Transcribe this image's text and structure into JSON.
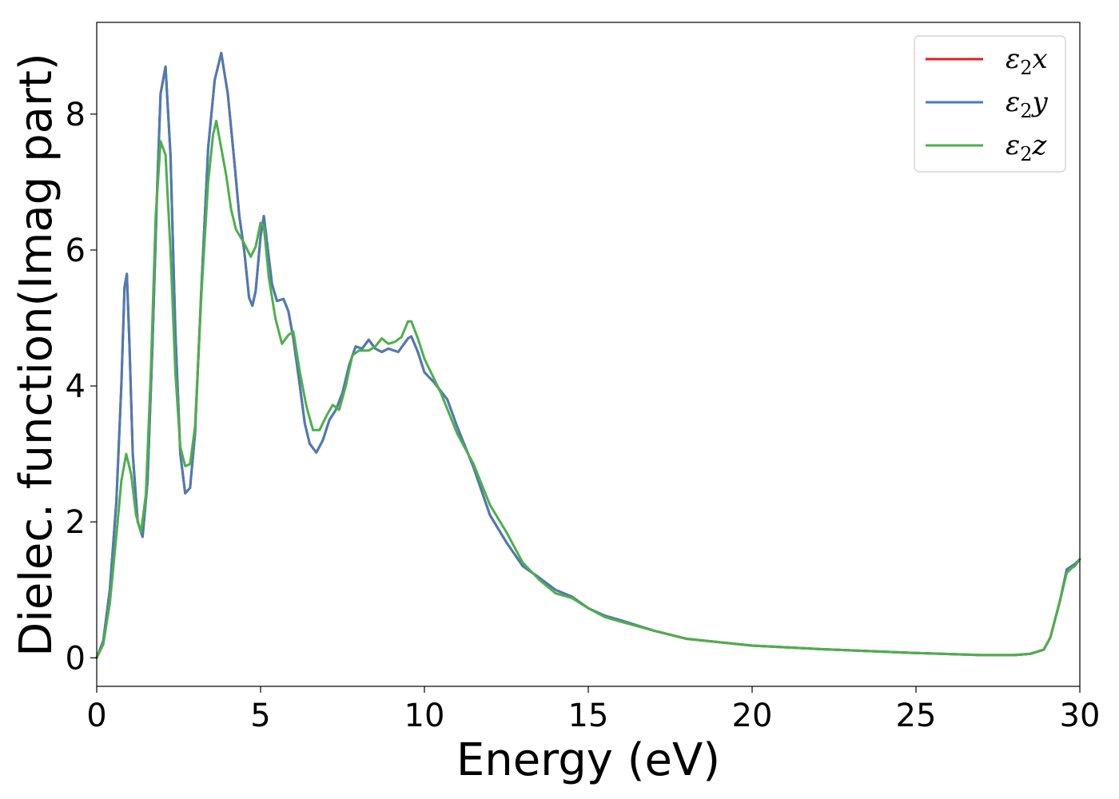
{
  "chart_data": {
    "type": "line",
    "xlabel": "Energy (eV)",
    "ylabel": "Dielec. function(Imag part)",
    "xlim": [
      0,
      30
    ],
    "ylim": [
      -0.42,
      9.35
    ],
    "xticks": [
      0,
      5,
      10,
      15,
      20,
      25,
      30
    ],
    "yticks": [
      0,
      2,
      4,
      6,
      8
    ],
    "grid": false,
    "legend_position": "top-right",
    "series": [
      {
        "name": "ε₂x",
        "legend": {
          "base": "ε",
          "sub": "2",
          "suffix": "x"
        },
        "color": "#e41a1c",
        "points": [
          [
            0,
            0
          ],
          [
            0.2,
            0.25
          ],
          [
            0.4,
            1.0
          ],
          [
            0.6,
            2.3
          ],
          [
            0.75,
            4.0
          ],
          [
            0.85,
            5.45
          ],
          [
            0.92,
            5.65
          ],
          [
            1.0,
            4.6
          ],
          [
            1.1,
            3.0
          ],
          [
            1.25,
            2.0
          ],
          [
            1.4,
            1.78
          ],
          [
            1.55,
            2.6
          ],
          [
            1.7,
            4.6
          ],
          [
            1.85,
            7.0
          ],
          [
            1.95,
            8.3
          ],
          [
            2.1,
            8.7
          ],
          [
            2.25,
            7.4
          ],
          [
            2.4,
            4.8
          ],
          [
            2.55,
            3.0
          ],
          [
            2.7,
            2.42
          ],
          [
            2.85,
            2.5
          ],
          [
            3.0,
            3.3
          ],
          [
            3.2,
            5.5
          ],
          [
            3.4,
            7.5
          ],
          [
            3.6,
            8.5
          ],
          [
            3.8,
            8.9
          ],
          [
            4.0,
            8.3
          ],
          [
            4.2,
            7.3
          ],
          [
            4.35,
            6.5
          ],
          [
            4.5,
            6.0
          ],
          [
            4.65,
            5.3
          ],
          [
            4.75,
            5.18
          ],
          [
            4.85,
            5.4
          ],
          [
            5.0,
            6.2
          ],
          [
            5.1,
            6.5
          ],
          [
            5.2,
            6.1
          ],
          [
            5.35,
            5.5
          ],
          [
            5.5,
            5.25
          ],
          [
            5.7,
            5.28
          ],
          [
            5.85,
            5.1
          ],
          [
            6.0,
            4.7
          ],
          [
            6.2,
            4.0
          ],
          [
            6.35,
            3.45
          ],
          [
            6.5,
            3.15
          ],
          [
            6.7,
            3.02
          ],
          [
            6.9,
            3.2
          ],
          [
            7.1,
            3.5
          ],
          [
            7.3,
            3.65
          ],
          [
            7.5,
            3.9
          ],
          [
            7.7,
            4.3
          ],
          [
            7.9,
            4.58
          ],
          [
            8.1,
            4.55
          ],
          [
            8.3,
            4.68
          ],
          [
            8.5,
            4.55
          ],
          [
            8.7,
            4.5
          ],
          [
            8.9,
            4.55
          ],
          [
            9.2,
            4.5
          ],
          [
            9.5,
            4.7
          ],
          [
            9.6,
            4.73
          ],
          [
            9.8,
            4.5
          ],
          [
            10.0,
            4.2
          ],
          [
            10.3,
            4.05
          ],
          [
            10.7,
            3.8
          ],
          [
            11.0,
            3.4
          ],
          [
            11.5,
            2.8
          ],
          [
            12.0,
            2.1
          ],
          [
            12.5,
            1.7
          ],
          [
            13.0,
            1.35
          ],
          [
            13.5,
            1.18
          ],
          [
            14.0,
            1.0
          ],
          [
            14.5,
            0.9
          ],
          [
            15.0,
            0.73
          ],
          [
            15.5,
            0.62
          ],
          [
            16.0,
            0.55
          ],
          [
            17.0,
            0.4
          ],
          [
            18.0,
            0.28
          ],
          [
            20.0,
            0.18
          ],
          [
            22.0,
            0.13
          ],
          [
            25.0,
            0.07
          ],
          [
            27.0,
            0.04
          ],
          [
            28.0,
            0.04
          ],
          [
            28.5,
            0.06
          ],
          [
            28.9,
            0.12
          ],
          [
            29.1,
            0.3
          ],
          [
            29.4,
            0.85
          ],
          [
            29.6,
            1.3
          ],
          [
            29.75,
            1.35
          ],
          [
            29.85,
            1.38
          ],
          [
            30.0,
            1.45
          ]
        ]
      },
      {
        "name": "ε₂y",
        "legend": {
          "base": "ε",
          "sub": "2",
          "suffix": "y"
        },
        "color": "#4a7bb7",
        "points": [
          [
            0,
            0
          ],
          [
            0.2,
            0.25
          ],
          [
            0.4,
            1.0
          ],
          [
            0.6,
            2.3
          ],
          [
            0.75,
            4.0
          ],
          [
            0.85,
            5.45
          ],
          [
            0.92,
            5.65
          ],
          [
            1.0,
            4.6
          ],
          [
            1.1,
            3.0
          ],
          [
            1.25,
            2.0
          ],
          [
            1.4,
            1.78
          ],
          [
            1.55,
            2.6
          ],
          [
            1.7,
            4.6
          ],
          [
            1.85,
            7.0
          ],
          [
            1.95,
            8.3
          ],
          [
            2.1,
            8.7
          ],
          [
            2.25,
            7.4
          ],
          [
            2.4,
            4.8
          ],
          [
            2.55,
            3.0
          ],
          [
            2.7,
            2.42
          ],
          [
            2.85,
            2.5
          ],
          [
            3.0,
            3.3
          ],
          [
            3.2,
            5.5
          ],
          [
            3.4,
            7.5
          ],
          [
            3.6,
            8.5
          ],
          [
            3.8,
            8.9
          ],
          [
            4.0,
            8.3
          ],
          [
            4.2,
            7.3
          ],
          [
            4.35,
            6.5
          ],
          [
            4.5,
            6.0
          ],
          [
            4.65,
            5.3
          ],
          [
            4.75,
            5.18
          ],
          [
            4.85,
            5.4
          ],
          [
            5.0,
            6.2
          ],
          [
            5.1,
            6.5
          ],
          [
            5.2,
            6.1
          ],
          [
            5.35,
            5.5
          ],
          [
            5.5,
            5.25
          ],
          [
            5.7,
            5.28
          ],
          [
            5.85,
            5.1
          ],
          [
            6.0,
            4.7
          ],
          [
            6.2,
            4.0
          ],
          [
            6.35,
            3.45
          ],
          [
            6.5,
            3.15
          ],
          [
            6.7,
            3.02
          ],
          [
            6.9,
            3.2
          ],
          [
            7.1,
            3.5
          ],
          [
            7.3,
            3.65
          ],
          [
            7.5,
            3.9
          ],
          [
            7.7,
            4.3
          ],
          [
            7.9,
            4.58
          ],
          [
            8.1,
            4.55
          ],
          [
            8.3,
            4.68
          ],
          [
            8.5,
            4.55
          ],
          [
            8.7,
            4.5
          ],
          [
            8.9,
            4.55
          ],
          [
            9.2,
            4.5
          ],
          [
            9.5,
            4.7
          ],
          [
            9.6,
            4.73
          ],
          [
            9.8,
            4.5
          ],
          [
            10.0,
            4.2
          ],
          [
            10.3,
            4.05
          ],
          [
            10.7,
            3.8
          ],
          [
            11.0,
            3.4
          ],
          [
            11.5,
            2.8
          ],
          [
            12.0,
            2.1
          ],
          [
            12.5,
            1.7
          ],
          [
            13.0,
            1.35
          ],
          [
            13.5,
            1.18
          ],
          [
            14.0,
            1.0
          ],
          [
            14.5,
            0.9
          ],
          [
            15.0,
            0.73
          ],
          [
            15.5,
            0.62
          ],
          [
            16.0,
            0.55
          ],
          [
            17.0,
            0.4
          ],
          [
            18.0,
            0.28
          ],
          [
            20.0,
            0.18
          ],
          [
            22.0,
            0.13
          ],
          [
            25.0,
            0.07
          ],
          [
            27.0,
            0.04
          ],
          [
            28.0,
            0.04
          ],
          [
            28.5,
            0.06
          ],
          [
            28.9,
            0.12
          ],
          [
            29.1,
            0.3
          ],
          [
            29.4,
            0.85
          ],
          [
            29.6,
            1.3
          ],
          [
            29.75,
            1.35
          ],
          [
            29.85,
            1.38
          ],
          [
            30.0,
            1.45
          ]
        ]
      },
      {
        "name": "ε₂z",
        "legend": {
          "base": "ε",
          "sub": "2",
          "suffix": "z"
        },
        "color": "#4daf4a",
        "points": [
          [
            0,
            0
          ],
          [
            0.2,
            0.2
          ],
          [
            0.4,
            0.8
          ],
          [
            0.6,
            1.8
          ],
          [
            0.75,
            2.6
          ],
          [
            0.9,
            3.0
          ],
          [
            1.05,
            2.7
          ],
          [
            1.2,
            2.1
          ],
          [
            1.35,
            1.85
          ],
          [
            1.5,
            2.4
          ],
          [
            1.65,
            4.2
          ],
          [
            1.8,
            6.5
          ],
          [
            1.95,
            7.6
          ],
          [
            2.1,
            7.4
          ],
          [
            2.25,
            6.0
          ],
          [
            2.4,
            4.2
          ],
          [
            2.55,
            3.1
          ],
          [
            2.7,
            2.82
          ],
          [
            2.85,
            2.85
          ],
          [
            3.0,
            3.4
          ],
          [
            3.2,
            5.4
          ],
          [
            3.4,
            7.0
          ],
          [
            3.55,
            7.7
          ],
          [
            3.65,
            7.9
          ],
          [
            3.8,
            7.5
          ],
          [
            3.95,
            7.1
          ],
          [
            4.1,
            6.6
          ],
          [
            4.25,
            6.3
          ],
          [
            4.5,
            6.1
          ],
          [
            4.7,
            5.9
          ],
          [
            4.85,
            6.05
          ],
          [
            5.0,
            6.4
          ],
          [
            5.1,
            6.35
          ],
          [
            5.25,
            5.6
          ],
          [
            5.45,
            5.0
          ],
          [
            5.65,
            4.62
          ],
          [
            5.85,
            4.75
          ],
          [
            6.0,
            4.8
          ],
          [
            6.2,
            4.2
          ],
          [
            6.4,
            3.7
          ],
          [
            6.6,
            3.35
          ],
          [
            6.8,
            3.35
          ],
          [
            7.0,
            3.55
          ],
          [
            7.2,
            3.72
          ],
          [
            7.4,
            3.65
          ],
          [
            7.6,
            4.0
          ],
          [
            7.8,
            4.45
          ],
          [
            8.0,
            4.52
          ],
          [
            8.3,
            4.52
          ],
          [
            8.5,
            4.58
          ],
          [
            8.7,
            4.7
          ],
          [
            8.9,
            4.62
          ],
          [
            9.1,
            4.65
          ],
          [
            9.3,
            4.72
          ],
          [
            9.5,
            4.95
          ],
          [
            9.6,
            4.95
          ],
          [
            9.8,
            4.7
          ],
          [
            10.0,
            4.4
          ],
          [
            10.5,
            3.9
          ],
          [
            11.0,
            3.3
          ],
          [
            11.5,
            2.85
          ],
          [
            12.0,
            2.25
          ],
          [
            12.5,
            1.85
          ],
          [
            13.0,
            1.4
          ],
          [
            13.5,
            1.15
          ],
          [
            14.0,
            0.95
          ],
          [
            14.5,
            0.88
          ],
          [
            15.0,
            0.73
          ],
          [
            15.5,
            0.6
          ],
          [
            16.0,
            0.53
          ],
          [
            17.0,
            0.4
          ],
          [
            18.0,
            0.28
          ],
          [
            20.0,
            0.18
          ],
          [
            22.0,
            0.13
          ],
          [
            25.0,
            0.07
          ],
          [
            27.0,
            0.04
          ],
          [
            28.0,
            0.04
          ],
          [
            28.5,
            0.06
          ],
          [
            28.9,
            0.12
          ],
          [
            29.1,
            0.3
          ],
          [
            29.4,
            0.85
          ],
          [
            29.6,
            1.25
          ],
          [
            29.75,
            1.32
          ],
          [
            29.85,
            1.35
          ],
          [
            30.0,
            1.45
          ]
        ]
      }
    ]
  }
}
